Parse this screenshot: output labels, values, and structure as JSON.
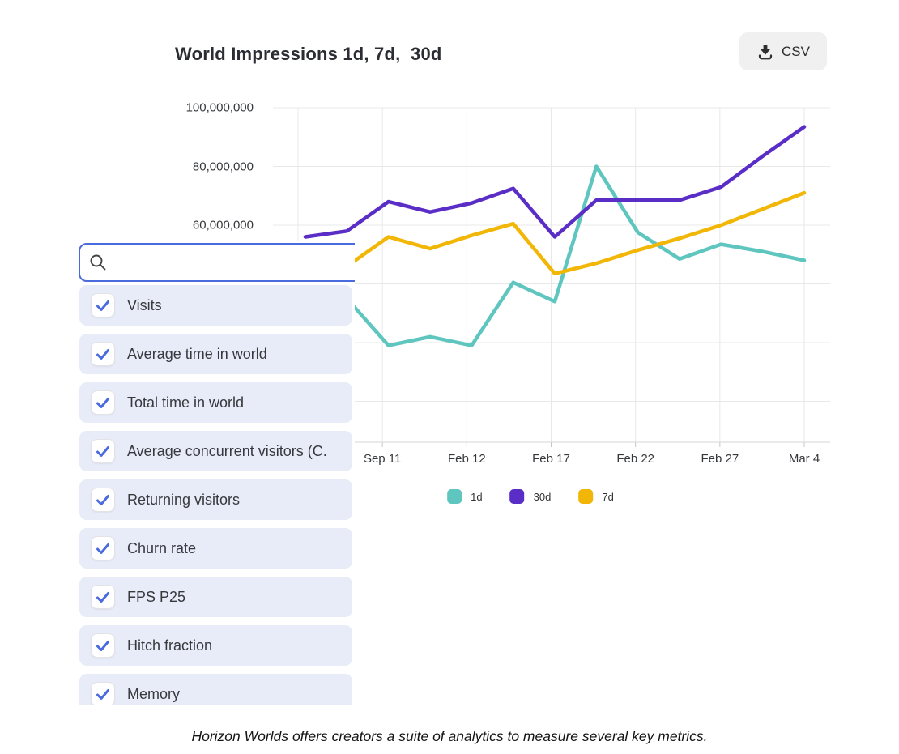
{
  "header": {
    "title": "World Impressions 1d, 7d,  30d",
    "csv_button_label": "CSV"
  },
  "search": {
    "placeholder": "",
    "value": ""
  },
  "metrics_list": {
    "items": [
      {
        "label": "Visits",
        "checked": true
      },
      {
        "label": "Average time in world",
        "checked": true
      },
      {
        "label": "Total time in world",
        "checked": true
      },
      {
        "label": "Average concurrent visitors (C.",
        "checked": true
      },
      {
        "label": "Returning visitors",
        "checked": true
      },
      {
        "label": "Churn rate",
        "checked": true
      },
      {
        "label": "FPS P25",
        "checked": true
      },
      {
        "label": "Hitch fraction",
        "checked": true
      },
      {
        "label": "Memory",
        "checked": true
      }
    ]
  },
  "chart_data": {
    "type": "line",
    "title": "World Impressions 1d, 7d,  30d",
    "x_tick_labels": [
      "Sep 11",
      "Feb 12",
      "Feb 17",
      "Feb 22",
      "Feb 27",
      "Mar 4"
    ],
    "y_tick_labels": [
      "100,000,000",
      "80,000,000",
      "60,000,000"
    ],
    "y_gridline_values_millions": [
      100,
      80,
      60,
      40,
      20,
      0
    ],
    "unit": "impressions, millions",
    "n_points": 13,
    "grid": true,
    "legend_position": "bottom",
    "series": [
      {
        "name": "1d",
        "color": "#5EC6BF",
        "values_millions": [
          null,
          35,
          19,
          22,
          19,
          40.5,
          34,
          80,
          57.5,
          48.5,
          53.5,
          51,
          48
        ]
      },
      {
        "name": "30d",
        "color": "#5A2EC6",
        "values_millions": [
          56,
          58,
          68,
          64.5,
          67.5,
          72.5,
          56,
          68.5,
          68.5,
          68.5,
          73,
          83.5,
          93.5
        ]
      },
      {
        "name": "7d",
        "color": "#F2B606",
        "values_millions": [
          null,
          46,
          56,
          52,
          56.5,
          60.5,
          43.5,
          47,
          51.5,
          55.5,
          60,
          65.5,
          71
        ]
      }
    ]
  },
  "caption": "Horizon Worlds offers creators a suite of analytics to measure several key metrics.",
  "colors": {
    "accent_blue": "#4A6BDD",
    "item_bg": "#E8ECF8",
    "series_1d": "#5EC6BF",
    "series_30d": "#5A2EC6",
    "series_7d": "#F2B606",
    "grid": "#E8E8E8",
    "csv_button_bg": "#F0F0F1"
  }
}
